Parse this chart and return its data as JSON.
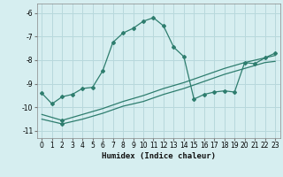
{
  "xlabel": "Humidex (Indice chaleur)",
  "bg_color": "#d6eef0",
  "grid_color": "#b8d8dc",
  "line_color": "#2e7d6e",
  "xlim": [
    -0.5,
    23.5
  ],
  "ylim": [
    -11.3,
    -5.6
  ],
  "yticks": [
    -11,
    -10,
    -9,
    -8,
    -7,
    -6
  ],
  "xticks": [
    0,
    1,
    2,
    3,
    4,
    5,
    6,
    7,
    8,
    9,
    10,
    11,
    12,
    13,
    14,
    15,
    16,
    17,
    18,
    19,
    20,
    21,
    22,
    23
  ],
  "line1_x": [
    0,
    1,
    2,
    3,
    4,
    5,
    6,
    7,
    8,
    9,
    10,
    11,
    12,
    13,
    14,
    15,
    16,
    17,
    18,
    19,
    20,
    21,
    22,
    23
  ],
  "line1_y": [
    -9.4,
    -9.85,
    -9.55,
    -9.45,
    -9.2,
    -9.15,
    -8.45,
    -7.25,
    -6.85,
    -6.65,
    -6.35,
    -6.2,
    -6.55,
    -7.45,
    -7.85,
    -9.65,
    -9.45,
    -9.35,
    -9.3,
    -9.35,
    -8.1,
    -8.15,
    -7.9,
    -7.7
  ],
  "line2_x": [
    2,
    23
  ],
  "line2_y": [
    -10.55,
    -7.8
  ],
  "line3_x": [
    2,
    23
  ],
  "line3_y": [
    -10.7,
    -8.05
  ],
  "line2_full_x": [
    0,
    2,
    4,
    6,
    8,
    10,
    12,
    14,
    16,
    18,
    20,
    22,
    23
  ],
  "line2_full_y": [
    -10.3,
    -10.55,
    -10.3,
    -10.05,
    -9.75,
    -9.5,
    -9.2,
    -8.95,
    -8.65,
    -8.35,
    -8.1,
    -7.9,
    -7.8
  ],
  "line3_full_x": [
    0,
    2,
    4,
    6,
    8,
    10,
    12,
    14,
    16,
    18,
    20,
    22,
    23
  ],
  "line3_full_y": [
    -10.5,
    -10.7,
    -10.5,
    -10.25,
    -9.95,
    -9.75,
    -9.45,
    -9.2,
    -8.9,
    -8.6,
    -8.35,
    -8.1,
    -8.05
  ]
}
